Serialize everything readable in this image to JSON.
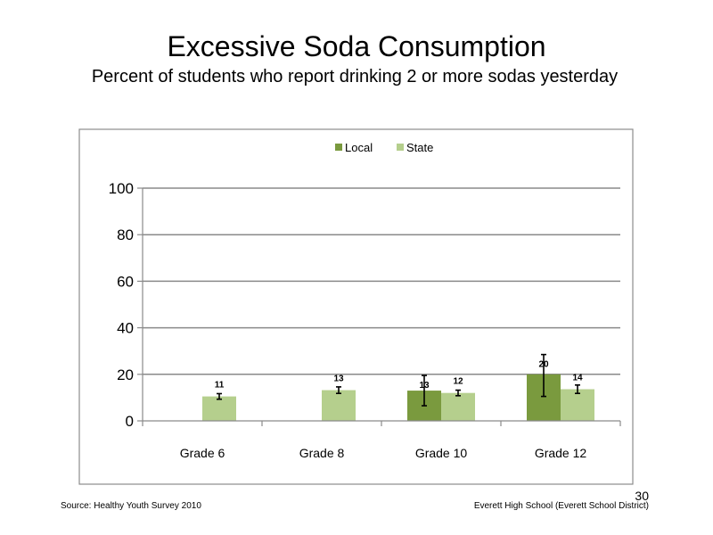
{
  "slide": {
    "title": "Excessive  Soda  Consumption",
    "subtitle": "Percent  of students  who  report drinking  2  or more sodas yesterday",
    "source": "Source: Healthy  Youth Survey 2010",
    "school": "Everett  High  School  (Everett School District)",
    "page_number": "30"
  },
  "chart_data": {
    "type": "bar",
    "categories": [
      "Grade 6",
      "Grade 8",
      "Grade 10",
      "Grade 12"
    ],
    "series": [
      {
        "name": "Local",
        "color": "#7a9a3e",
        "values": [
          null,
          null,
          13,
          20
        ],
        "labels": [
          "",
          "",
          "13",
          "20"
        ],
        "error_low": [
          null,
          null,
          6.5,
          10.5
        ],
        "error_high": [
          null,
          null,
          19.5,
          28.5
        ]
      },
      {
        "name": "State",
        "color": "#b5cf8d",
        "values": [
          10.5,
          13.2,
          12,
          13.6
        ],
        "labels": [
          "11",
          "13",
          "12",
          "14"
        ],
        "error_low": [
          9.3,
          11.8,
          10.8,
          11.8
        ],
        "error_high": [
          11.7,
          14.6,
          13.2,
          15.4
        ]
      }
    ],
    "yticks": [
      "0",
      "20",
      "40",
      "60",
      "80",
      "100"
    ],
    "ylim": [
      0,
      100
    ],
    "legend_position": "top-center",
    "grid": true
  }
}
